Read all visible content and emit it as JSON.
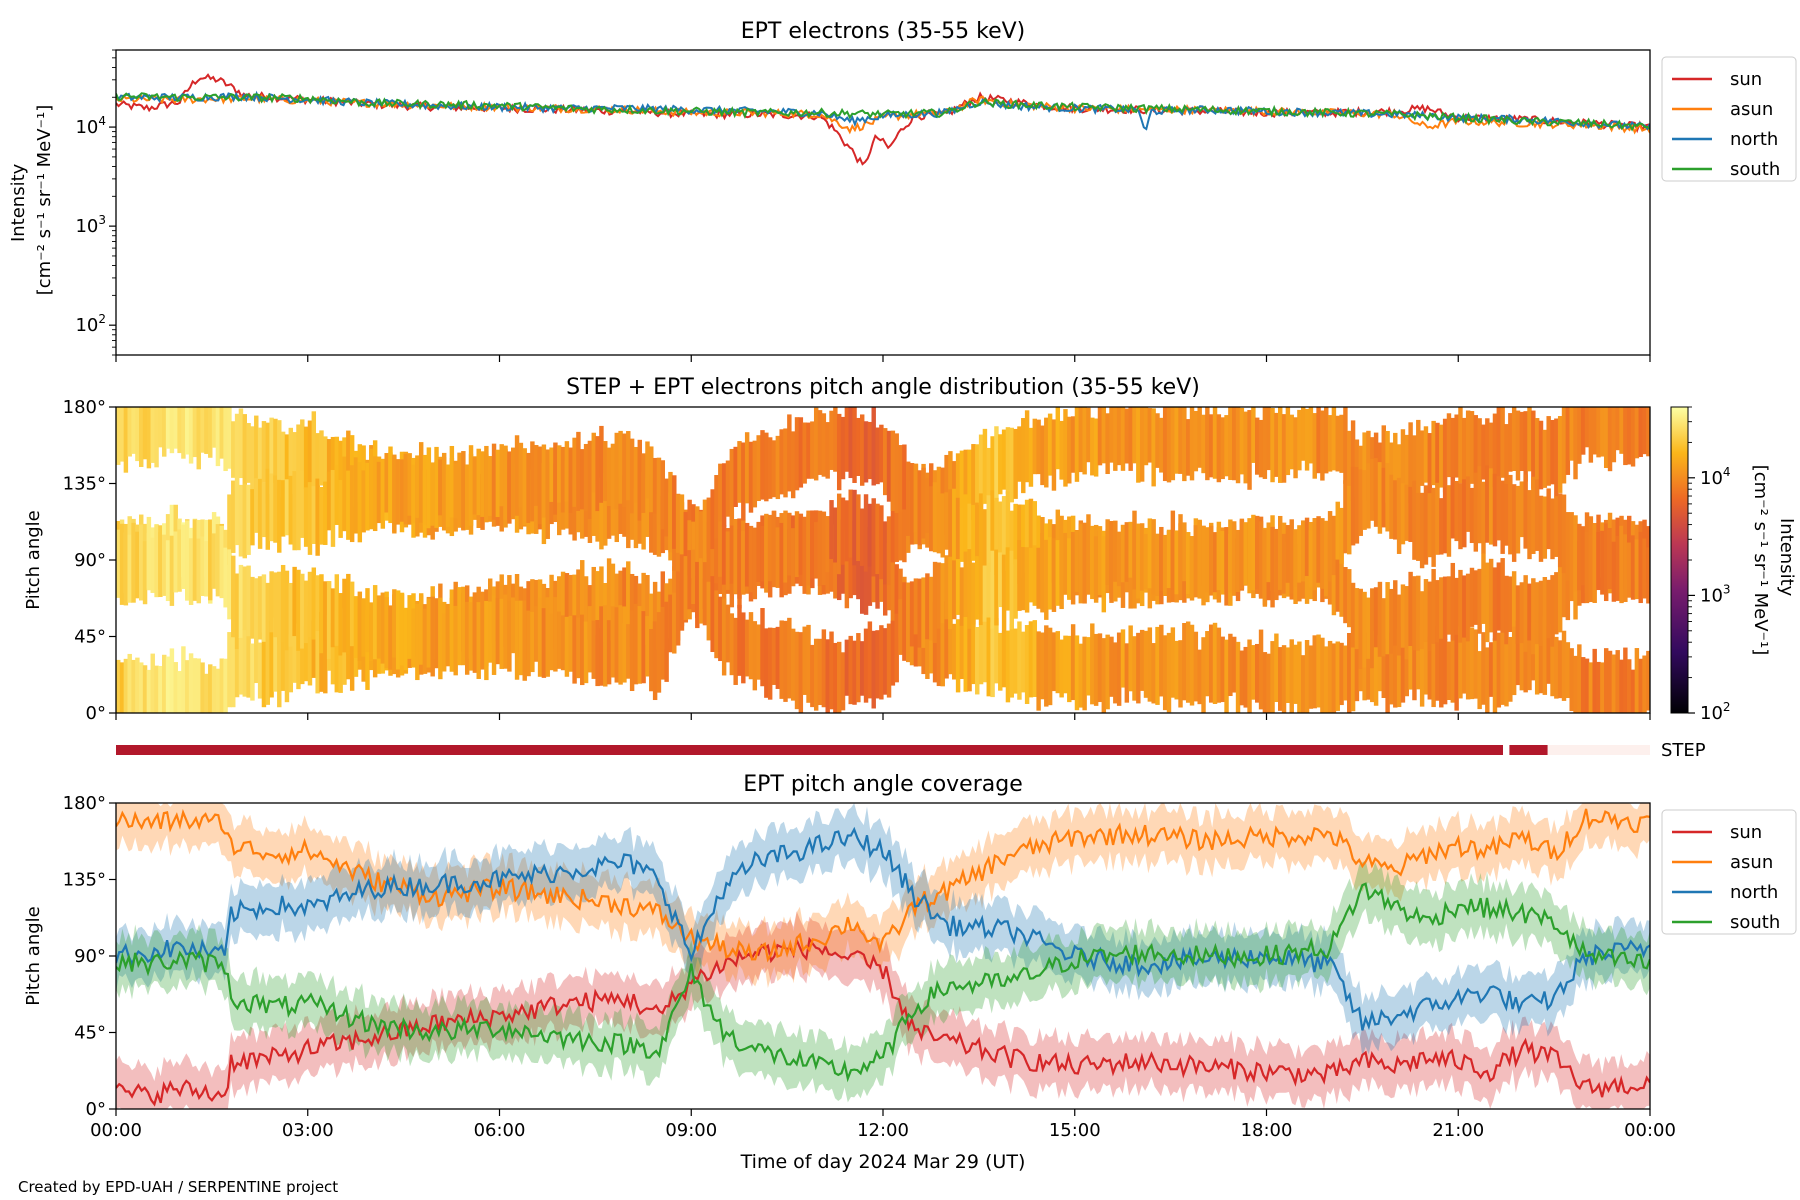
{
  "footer": {
    "credit": "Created by EPD-UAH / SERPENTINE project"
  },
  "chart_data": [
    {
      "type": "line",
      "title": "EPT electrons (35-55 keV)",
      "ylabel_line1": "Intensity",
      "ylabel_line2": "[cm⁻² s⁻¹ sr⁻¹ MeV⁻¹]",
      "yscale": "log",
      "ylim": [
        50,
        60000
      ],
      "yticks": [
        {
          "value": 100,
          "base": "10",
          "exp": "2"
        },
        {
          "value": 1000,
          "base": "10",
          "exp": "3"
        },
        {
          "value": 10000,
          "base": "10",
          "exp": "4"
        }
      ],
      "xlim": [
        0,
        24
      ],
      "x_unit": "hours UT",
      "legend": {
        "placement": "outside-right-top",
        "entries": [
          "sun",
          "asun",
          "north",
          "south"
        ]
      },
      "series": [
        {
          "name": "sun",
          "color": "#d62728",
          "x": [
            0,
            0.5,
            1.0,
            1.3,
            1.6,
            2.0,
            3,
            4,
            5,
            6,
            7,
            8,
            9,
            10,
            11,
            11.4,
            11.7,
            11.9,
            12.1,
            12.5,
            13,
            13.5,
            13.8,
            14.5,
            15,
            16,
            17,
            18,
            19,
            20,
            20.5,
            20.8,
            21,
            22,
            23,
            24
          ],
          "values": [
            17000,
            15500,
            18000,
            32000,
            30000,
            21000,
            19000,
            17000,
            16000,
            15500,
            15000,
            14500,
            13500,
            13500,
            13000,
            7000,
            3800,
            8000,
            6000,
            13000,
            13500,
            20000,
            19000,
            16500,
            15500,
            15000,
            14500,
            14000,
            14000,
            14500,
            15500,
            13500,
            12500,
            12000,
            11000,
            10000
          ]
        },
        {
          "name": "asun",
          "color": "#ff7f0e",
          "x": [
            0,
            1,
            2,
            3,
            4,
            5,
            6,
            7,
            8,
            9,
            10,
            11,
            11.5,
            11.8,
            12,
            12.5,
            13,
            13.5,
            14,
            15,
            16,
            17,
            18,
            19,
            20,
            20.5,
            21,
            22,
            23,
            24
          ],
          "values": [
            19000,
            19000,
            19500,
            18500,
            17500,
            16500,
            16000,
            15500,
            15000,
            14000,
            14000,
            13500,
            9500,
            11000,
            12500,
            13500,
            14000,
            19000,
            17000,
            15500,
            15000,
            15000,
            14500,
            14000,
            13500,
            10000,
            11500,
            11000,
            10500,
            9500
          ]
        },
        {
          "name": "north",
          "color": "#1f77b4",
          "x": [
            0,
            1,
            2,
            3,
            4,
            5,
            6,
            7,
            8,
            9,
            10,
            11,
            11.5,
            12,
            13,
            13.5,
            14,
            15,
            16,
            16.1,
            16.2,
            17,
            18,
            19,
            20,
            21,
            22,
            23,
            24
          ],
          "values": [
            20000,
            20000,
            20500,
            19000,
            17500,
            16500,
            16000,
            15500,
            15500,
            15000,
            14500,
            14000,
            11500,
            13000,
            14000,
            18000,
            16500,
            15500,
            15000,
            8000,
            14500,
            15000,
            14500,
            14000,
            13500,
            12500,
            12000,
            11000,
            10000
          ]
        },
        {
          "name": "south",
          "color": "#2ca02c",
          "x": [
            0,
            1,
            2,
            3,
            4,
            5,
            6,
            7,
            8,
            9,
            10,
            11,
            12,
            13,
            13.5,
            14,
            15,
            16,
            17,
            18,
            19,
            20,
            21,
            22,
            23,
            24
          ],
          "values": [
            20500,
            20000,
            20000,
            19500,
            17500,
            17000,
            16500,
            15500,
            15000,
            14500,
            14000,
            14000,
            13500,
            14000,
            18000,
            17000,
            16000,
            15500,
            15000,
            14500,
            14000,
            13500,
            12500,
            11500,
            11000,
            10000
          ]
        }
      ]
    },
    {
      "type": "heatmap",
      "title": "STEP + EPT electrons pitch angle distribution (35-55 keV)",
      "ylabel": "Pitch angle",
      "ylim": [
        0,
        180
      ],
      "yticks": [
        "0°",
        "45°",
        "90°",
        "135°",
        "180°"
      ],
      "xlim": [
        0,
        24
      ],
      "colormap": "inferno",
      "colorbar": {
        "label_line1": "Intensity",
        "label_line2": "[cm⁻² s⁻¹ sr⁻¹ MeV⁻¹]",
        "scale": "log",
        "lim": [
          100,
          40000
        ],
        "ticks": [
          {
            "value": 100,
            "base": "10",
            "exp": "2"
          },
          {
            "value": 1000,
            "base": "10",
            "exp": "3"
          },
          {
            "value": 10000,
            "base": "10",
            "exp": "4"
          }
        ]
      },
      "intensity_profile": {
        "x": [
          0,
          1,
          2,
          3,
          4,
          5,
          6,
          7,
          8,
          9,
          10,
          11,
          11.7,
          12.5,
          13,
          13.7,
          14.5,
          16,
          18,
          20,
          21,
          22,
          23,
          24
        ],
        "values": [
          22000,
          30000,
          24000,
          18000,
          15000,
          12000,
          11000,
          10500,
          10000,
          9000,
          8500,
          8000,
          6000,
          9000,
          11000,
          20000,
          13000,
          11000,
          10500,
          10000,
          9000,
          9500,
          9000,
          8500
        ]
      },
      "step_bar": {
        "label": "STEP",
        "segments": [
          {
            "start": 0,
            "end": 21.7,
            "status": "on",
            "color": "#b2182b"
          },
          {
            "start": 21.8,
            "end": 22.4,
            "status": "on",
            "color": "#b2182b"
          },
          {
            "start": 22.4,
            "end": 24,
            "status": "off",
            "color": "#fdf0ed"
          }
        ]
      }
    },
    {
      "type": "line",
      "title": "EPT pitch angle coverage",
      "ylabel": "Pitch angle",
      "ylim": [
        0,
        180
      ],
      "yticks": [
        "0°",
        "45°",
        "90°",
        "135°",
        "180°"
      ],
      "xlabel": "Time of day 2024 Mar 29 (UT)",
      "xlim": [
        0,
        24
      ],
      "xticks": [
        "00:00",
        "03:00",
        "06:00",
        "09:00",
        "12:00",
        "15:00",
        "18:00",
        "21:00",
        "00:00"
      ],
      "legend": {
        "placement": "outside-right-top",
        "entries": [
          "sun",
          "asun",
          "north",
          "south"
        ]
      },
      "band_halfwidth_deg": 13,
      "series": [
        {
          "name": "sun",
          "color": "#d62728",
          "x": [
            0,
            0.5,
            1.0,
            1.7,
            1.8,
            2.5,
            3,
            4,
            5,
            6,
            6.5,
            7,
            8,
            8.5,
            9,
            9.5,
            10,
            11,
            11.5,
            12,
            12.5,
            13,
            14,
            15,
            16,
            17,
            18,
            19,
            19.5,
            20,
            20.5,
            21,
            21.5,
            22,
            22.5,
            23,
            24
          ],
          "values": [
            10,
            8,
            12,
            8,
            28,
            30,
            35,
            42,
            50,
            55,
            58,
            62,
            65,
            55,
            75,
            85,
            92,
            95,
            88,
            82,
            45,
            40,
            30,
            25,
            28,
            25,
            22,
            20,
            28,
            25,
            30,
            28,
            22,
            35,
            30,
            12,
            15
          ]
        },
        {
          "name": "asun",
          "color": "#ff7f0e",
          "x": [
            0,
            0.5,
            1,
            1.7,
            1.8,
            2.5,
            3,
            4,
            5,
            6,
            7,
            8,
            8.5,
            9,
            9.5,
            10,
            11,
            11.5,
            12,
            12.5,
            13,
            14,
            15,
            16,
            17,
            18,
            19,
            19.5,
            20,
            20.5,
            21,
            21.5,
            22,
            22.5,
            23,
            24
          ],
          "values": [
            170,
            168,
            170,
            168,
            155,
            150,
            152,
            135,
            125,
            130,
            125,
            120,
            115,
            100,
            95,
            90,
            100,
            110,
            95,
            120,
            128,
            150,
            160,
            162,
            158,
            160,
            162,
            145,
            140,
            150,
            155,
            152,
            160,
            150,
            172,
            168
          ]
        },
        {
          "name": "north",
          "color": "#1f77b4",
          "x": [
            0,
            0.5,
            1,
            1.7,
            1.8,
            2.5,
            3,
            4,
            5,
            6,
            7,
            8,
            8.5,
            9,
            9.5,
            10,
            11,
            11.5,
            12,
            12.5,
            13,
            14,
            15,
            16,
            17,
            18,
            19,
            19.5,
            20,
            20.5,
            21,
            21.5,
            22,
            22.5,
            23,
            24
          ],
          "values": [
            90,
            92,
            95,
            90,
            115,
            120,
            118,
            130,
            132,
            135,
            140,
            145,
            135,
            90,
            130,
            145,
            155,
            160,
            152,
            125,
            108,
            105,
            90,
            85,
            88,
            90,
            85,
            50,
            55,
            60,
            65,
            70,
            60,
            65,
            90,
            95
          ]
        },
        {
          "name": "south",
          "color": "#2ca02c",
          "x": [
            0,
            0.5,
            1,
            1.7,
            1.8,
            2.5,
            3,
            4,
            5,
            6,
            7,
            8,
            8.5,
            9,
            9.5,
            10,
            11,
            11.5,
            12,
            12.5,
            13,
            14,
            15,
            16,
            17,
            18,
            19,
            19.5,
            20,
            20.5,
            21,
            21.5,
            22,
            22.5,
            23,
            24
          ],
          "values": [
            88,
            85,
            88,
            85,
            65,
            60,
            62,
            50,
            45,
            48,
            42,
            38,
            35,
            80,
            45,
            35,
            25,
            22,
            30,
            60,
            72,
            75,
            88,
            92,
            90,
            90,
            95,
            130,
            120,
            110,
            120,
            118,
            115,
            110,
            90,
            85
          ]
        }
      ]
    }
  ]
}
